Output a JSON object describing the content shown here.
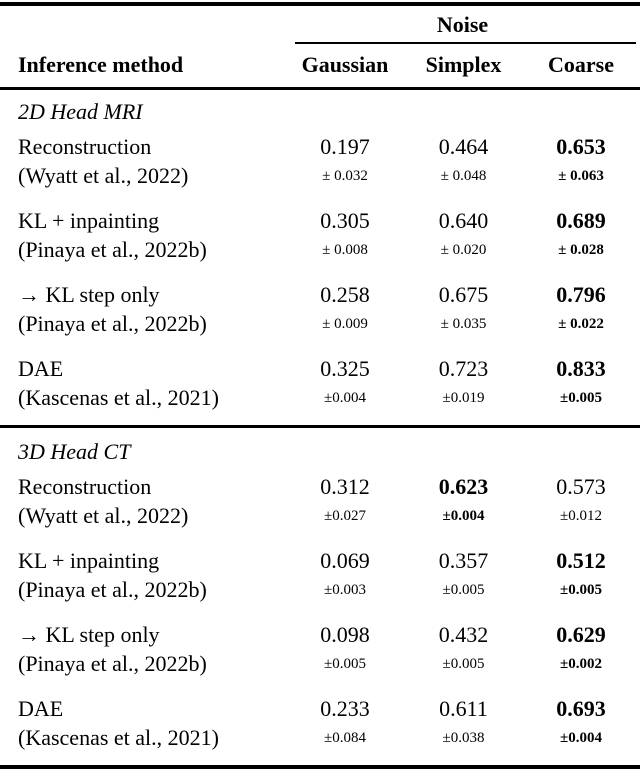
{
  "header": {
    "group_label": "Noise",
    "method_column": "Inference method",
    "noise_columns": [
      "Gaussian",
      "Simplex",
      "Coarse"
    ]
  },
  "sections": [
    {
      "label": "2D Head MRI",
      "rows": [
        {
          "method": "Reconstruction",
          "citation": "(Wyatt et al., 2022)",
          "cells": [
            {
              "value": "0.197",
              "err": "± 0.032",
              "bold": false
            },
            {
              "value": "0.464",
              "err": "± 0.048",
              "bold": false
            },
            {
              "value": "0.653",
              "err": "± 0.063",
              "bold": true
            }
          ]
        },
        {
          "method": "KL + inpainting",
          "citation": "(Pinaya et al., 2022b)",
          "cells": [
            {
              "value": "0.305",
              "err": "± 0.008",
              "bold": false
            },
            {
              "value": "0.640",
              "err": "± 0.020",
              "bold": false
            },
            {
              "value": "0.689",
              "err": "± 0.028",
              "bold": true
            }
          ]
        },
        {
          "method": "→ KL step only",
          "citation": "(Pinaya et al., 2022b)",
          "cells": [
            {
              "value": "0.258",
              "err": "± 0.009",
              "bold": false
            },
            {
              "value": "0.675",
              "err": "± 0.035",
              "bold": false
            },
            {
              "value": "0.796",
              "err": "± 0.022",
              "bold": true
            }
          ]
        },
        {
          "method": "DAE",
          "citation": "(Kascenas et al., 2021)",
          "cells": [
            {
              "value": "0.325",
              "err": "±0.004",
              "bold": false
            },
            {
              "value": "0.723",
              "err": "±0.019",
              "bold": false
            },
            {
              "value": "0.833",
              "err": "±0.005",
              "bold": true
            }
          ]
        }
      ]
    },
    {
      "label": "3D Head CT",
      "rows": [
        {
          "method": "Reconstruction",
          "citation": "(Wyatt et al., 2022)",
          "cells": [
            {
              "value": "0.312",
              "err": "±0.027",
              "bold": false
            },
            {
              "value": "0.623",
              "err": "±0.004",
              "bold": true
            },
            {
              "value": "0.573",
              "err": "±0.012",
              "bold": false
            }
          ]
        },
        {
          "method": "KL + inpainting",
          "citation": "(Pinaya et al., 2022b)",
          "cells": [
            {
              "value": "0.069",
              "err": "±0.003",
              "bold": false
            },
            {
              "value": "0.357",
              "err": "±0.005",
              "bold": false
            },
            {
              "value": "0.512",
              "err": "±0.005",
              "bold": true
            }
          ]
        },
        {
          "method": "→ KL step only",
          "citation": "(Pinaya et al., 2022b)",
          "cells": [
            {
              "value": "0.098",
              "err": "±0.005",
              "bold": false
            },
            {
              "value": "0.432",
              "err": "±0.005",
              "bold": false
            },
            {
              "value": "0.629",
              "err": "±0.002",
              "bold": true
            }
          ]
        },
        {
          "method": "DAE",
          "citation": "(Kascenas et al., 2021)",
          "cells": [
            {
              "value": "0.233",
              "err": "±0.084",
              "bold": false
            },
            {
              "value": "0.611",
              "err": "±0.038",
              "bold": false
            },
            {
              "value": "0.693",
              "err": "±0.004",
              "bold": true
            }
          ]
        }
      ]
    }
  ],
  "colors": {
    "text": "#000000",
    "background": "#ffffff",
    "rule": "#000000"
  }
}
